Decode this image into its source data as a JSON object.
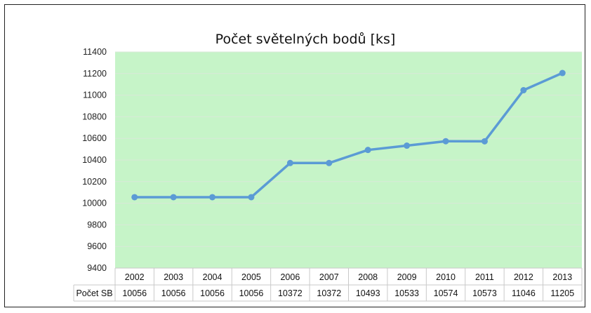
{
  "chart_data": {
    "type": "line",
    "title": "Počet světelných bodů [ks]",
    "categories": [
      "2002",
      "2003",
      "2004",
      "2005",
      "2006",
      "2007",
      "2008",
      "2009",
      "2010",
      "2011",
      "2012",
      "2013"
    ],
    "series": [
      {
        "name": "Počet SB",
        "values": [
          10056,
          10056,
          10056,
          10056,
          10372,
          10372,
          10493,
          10533,
          10574,
          10573,
          11046,
          11205
        ]
      }
    ],
    "ylim": [
      9400,
      11400
    ],
    "yticks": [
      9400,
      9600,
      9800,
      10000,
      10200,
      10400,
      10600,
      10800,
      11000,
      11200,
      11400
    ],
    "data_table": true,
    "grid": true,
    "colors": {
      "line": "#5b9bd5",
      "plot_background": "#c6f4c8",
      "grid": "#d9e8d9"
    }
  }
}
